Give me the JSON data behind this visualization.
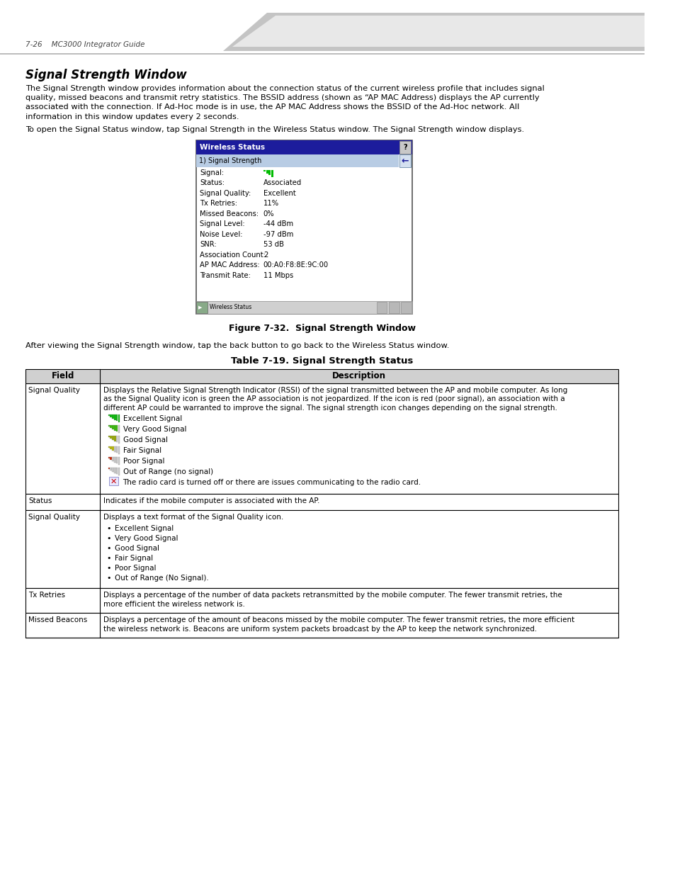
{
  "page_header": "7-26    MC3000 Integrator Guide",
  "section_title": "Signal Strength Window",
  "body_text_1_lines": [
    "The Signal Strength window provides information about the connection status of the current wireless profile that includes signal",
    "quality, missed beacons and transmit retry statistics. The BSSID address (shown as “AP MAC Address) displays the AP currently",
    "associated with the connection. If Ad-Hoc mode is in use, the AP MAC Address shows the BSSID of the Ad-Hoc network. All",
    "information in this window updates every 2 seconds."
  ],
  "body_text_2": "To open the Signal Status window, tap Signal Strength in the Wireless Status window. The Signal Strength window displays.",
  "figure_caption": "Figure 7-32.  Signal Strength Window",
  "after_figure_text": "After viewing the Signal Strength window, tap the back button to go back to the Wireless Status window.",
  "table_title": "Table 7-19. Signal Strength Status",
  "table_col1_header": "Field",
  "table_col2_header": "Description",
  "table_rows": [
    {
      "field": "Signal Quality",
      "description_lines": [
        "Displays the Relative Signal Strength Indicator (RSSI) of the signal transmitted between the AP and mobile computer. As long",
        "as the Signal Quality icon is green the AP association is not jeopardized. If the icon is red (poor signal), an association with a",
        "different AP could be warranted to improve the signal. The signal strength icon changes depending on the signal strength."
      ],
      "has_icons": true,
      "icon_labels": [
        "Excellent Signal",
        "Very Good Signal",
        "Good Signal",
        "Fair Signal",
        "Poor Signal",
        "Out of Range (no signal)",
        "The radio card is turned off or there are issues communicating to the radio card."
      ],
      "icon_colors": [
        "#00bb00",
        "#33bb00",
        "#99aa00",
        "#bbbb00",
        "#bb3300",
        "#aa2200",
        null
      ],
      "icon_bar_counts": [
        6,
        5,
        4,
        3,
        2,
        1,
        0
      ]
    },
    {
      "field": "Status",
      "description_lines": [
        "Indicates if the mobile computer is associated with the AP."
      ],
      "has_icons": false
    },
    {
      "field": "Signal Quality",
      "description_lines": [
        "Displays a text format of the Signal Quality icon."
      ],
      "has_icons": false,
      "bullet_items": [
        "Excellent Signal",
        "Very Good Signal",
        "Good Signal",
        "Fair Signal",
        "Poor Signal",
        "Out of Range (No Signal)."
      ]
    },
    {
      "field": "Tx Retries",
      "description_lines": [
        "Displays a percentage of the number of data packets retransmitted by the mobile computer. The fewer transmit retries, the",
        "more efficient the wireless network is."
      ],
      "has_icons": false
    },
    {
      "field": "Missed Beacons",
      "description_lines": [
        "Displays a percentage of the amount of beacons missed by the mobile computer. The fewer transmit retries, the more efficient",
        "the wireless network is. Beacons are uniform system packets broadcast by the AP to keep the network synchronized."
      ],
      "has_icons": false
    }
  ],
  "wireless_status_window": {
    "title": "Wireless Status",
    "menu_item": "1) Signal Strength",
    "fields": [
      [
        "Signal:",
        "signal_icon"
      ],
      [
        "Status:",
        "Associated"
      ],
      [
        "Signal Quality:",
        "Excellent"
      ],
      [
        "Tx Retries:",
        "11%"
      ],
      [
        "Missed Beacons:",
        "0%"
      ],
      [
        "Signal Level:",
        "-44 dBm"
      ],
      [
        "Noise Level:",
        "-97 dBm"
      ],
      [
        "SNR:",
        "53 dB"
      ],
      [
        "Association Count:",
        "2"
      ],
      [
        "AP MAC Address:",
        "00:A0:F8:8E:9C:00"
      ],
      [
        "Transmit Rate:",
        "11 Mbps"
      ]
    ]
  },
  "bg_color": "#ffffff",
  "page_header_font_size": 7.5,
  "title_font_size": 12,
  "body_font_size": 8.2,
  "table_font_size": 7.8,
  "table_small_font_size": 7.5
}
